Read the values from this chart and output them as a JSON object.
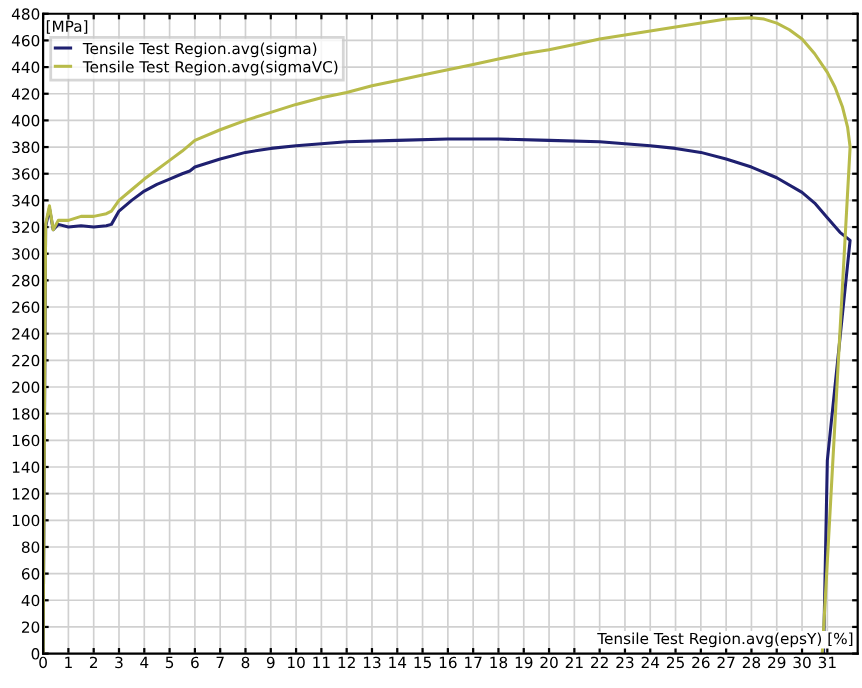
{
  "chart_data": {
    "type": "line",
    "xlabel": "Tensile Test Region.avg(epsY) [%]",
    "ylabel": "[MPa]",
    "xlim": [
      0,
      32.2
    ],
    "ylim": [
      0,
      480
    ],
    "xticks": [
      0,
      1,
      2,
      3,
      4,
      5,
      6,
      7,
      8,
      9,
      10,
      11,
      12,
      13,
      14,
      15,
      16,
      17,
      18,
      19,
      20,
      21,
      22,
      23,
      24,
      25,
      26,
      27,
      28,
      29,
      30,
      31
    ],
    "yticks": [
      0,
      20,
      40,
      60,
      80,
      100,
      120,
      140,
      160,
      180,
      200,
      220,
      240,
      260,
      280,
      300,
      320,
      340,
      360,
      380,
      400,
      420,
      440,
      460,
      480
    ],
    "grid": true,
    "legend": "top left",
    "series": [
      {
        "name": "Tensile Test Region.avg(sigma)",
        "color": "#1f2070",
        "x": [
          0,
          0.1,
          0.25,
          0.4,
          0.6,
          1,
          1.5,
          2,
          2.5,
          2.7,
          3,
          3.5,
          4,
          4.5,
          5,
          5.5,
          5.8,
          6,
          7,
          8,
          9,
          10,
          12,
          14,
          16,
          18,
          20,
          22,
          24,
          25,
          26,
          27,
          28,
          29,
          30,
          30.5,
          31,
          31.5,
          31.9,
          31,
          30.85
        ],
        "values": [
          0,
          320,
          334,
          318,
          322,
          320,
          321,
          320,
          321,
          322,
          332,
          340,
          347,
          352,
          356,
          360,
          362,
          365,
          371,
          376,
          379,
          381,
          384,
          385,
          386,
          386,
          385,
          384,
          381,
          379,
          376,
          371,
          365,
          357,
          346,
          338,
          327,
          316,
          310,
          145,
          0
        ]
      },
      {
        "name": "Tensile Test Region.avg(sigmaVC)",
        "color": "#b8bb4a",
        "x": [
          0,
          0.1,
          0.25,
          0.4,
          0.6,
          1,
          1.5,
          2,
          2.5,
          2.7,
          3,
          3.5,
          4,
          4.5,
          5,
          5.5,
          6,
          7,
          8,
          9,
          10,
          11,
          12,
          13,
          14,
          15,
          16,
          17,
          18,
          19,
          20,
          21,
          22,
          23,
          24,
          25,
          26,
          27,
          28,
          28.5,
          29,
          29.5,
          30,
          30.5,
          31,
          31.3,
          31.6,
          31.8,
          31.9,
          30.8
        ],
        "values": [
          0,
          322,
          336,
          318,
          325,
          325,
          328,
          328,
          330,
          332,
          340,
          348,
          356,
          363,
          370,
          377,
          385,
          393,
          400,
          406,
          412,
          417,
          421,
          426,
          430,
          434,
          438,
          442,
          446,
          450,
          453,
          457,
          461,
          464,
          467,
          470,
          473,
          476,
          477,
          476,
          473,
          468,
          461,
          450,
          436,
          425,
          410,
          395,
          380,
          0
        ]
      }
    ]
  }
}
